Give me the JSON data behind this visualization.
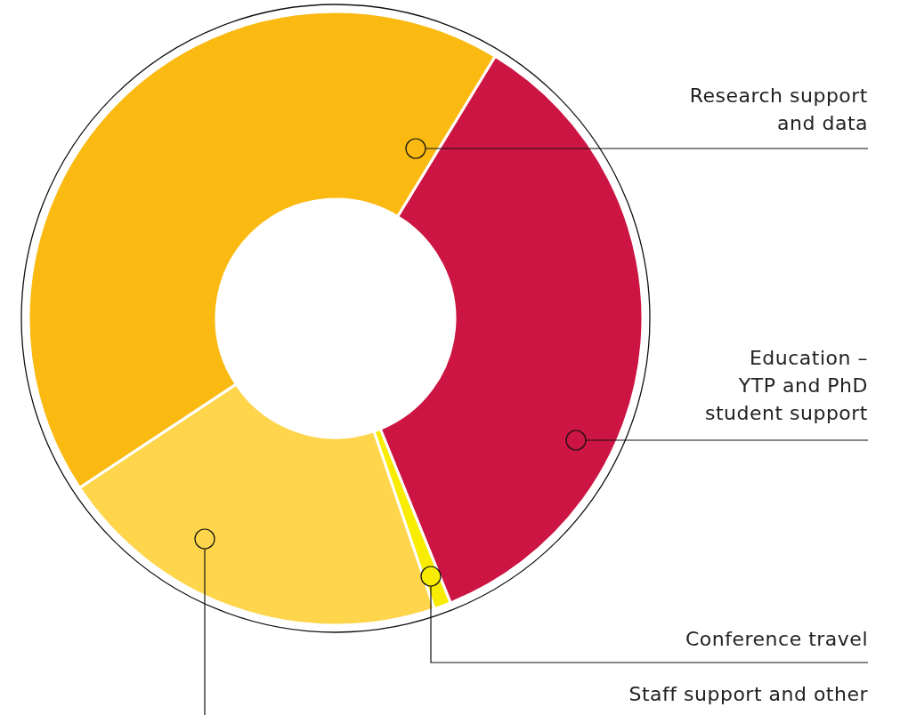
{
  "chart_data": {
    "type": "donut",
    "categories": [
      "Education –\nYTP and PhD\nstudent support",
      "Conference travel",
      "Staff support and other",
      "Research support\nand data"
    ],
    "values": [
      35.2,
      0.9,
      20.9,
      43.0
    ],
    "colors": [
      "#cc1543",
      "#f8ec00",
      "#fed54b",
      "#fbba12"
    ],
    "legend": false
  }
}
